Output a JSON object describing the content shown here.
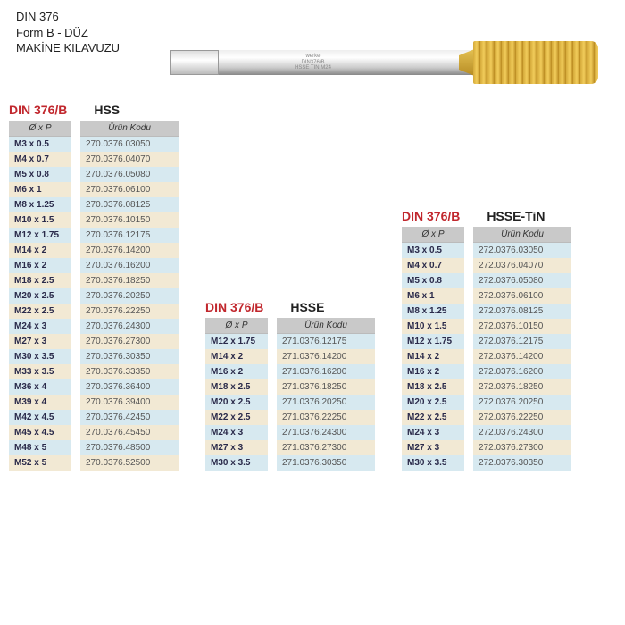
{
  "header": {
    "line1": "DIN 376",
    "line2": "Form B - DÜZ",
    "line3": "MAKİNE KILAVUZU"
  },
  "tool_marking": {
    "brand": "werke",
    "spec": "DIN376/B",
    "coat": "HSSE TIN M24"
  },
  "colors": {
    "title_red": "#c1272d",
    "row_blue": "#d7e9f0",
    "row_cream": "#f2e9d4",
    "header_grey": "#c9c9c9",
    "thread_gold": "#d4a93a"
  },
  "tables": [
    {
      "title": "DIN 376/B",
      "material": "HSS",
      "size_header": "Ø  x  P",
      "code_header": "Ürün Kodu",
      "rows": [
        {
          "size": "M3 x 0.5",
          "code": "270.0376.03050"
        },
        {
          "size": "M4 x 0.7",
          "code": "270.0376.04070"
        },
        {
          "size": "M5 x 0.8",
          "code": "270.0376.05080"
        },
        {
          "size": "M6 x 1",
          "code": "270.0376.06100"
        },
        {
          "size": "M8 x 1.25",
          "code": "270.0376.08125"
        },
        {
          "size": "M10 x 1.5",
          "code": "270.0376.10150"
        },
        {
          "size": "M12 x 1.75",
          "code": "270.0376.12175"
        },
        {
          "size": "M14 x 2",
          "code": "270.0376.14200"
        },
        {
          "size": "M16 x 2",
          "code": "270.0376.16200"
        },
        {
          "size": "M18 x 2.5",
          "code": "270.0376.18250"
        },
        {
          "size": "M20 x 2.5",
          "code": "270.0376.20250"
        },
        {
          "size": "M22 x 2.5",
          "code": "270.0376.22250"
        },
        {
          "size": "M24 x 3",
          "code": "270.0376.24300"
        },
        {
          "size": "M27 x 3",
          "code": "270.0376.27300"
        },
        {
          "size": "M30 x 3.5",
          "code": "270.0376.30350"
        },
        {
          "size": "M33 x 3.5",
          "code": "270.0376.33350"
        },
        {
          "size": "M36 x 4",
          "code": "270.0376.36400"
        },
        {
          "size": "M39 x 4",
          "code": "270.0376.39400"
        },
        {
          "size": "M42 x 4.5",
          "code": "270.0376.42450"
        },
        {
          "size": "M45 x 4.5",
          "code": "270.0376.45450"
        },
        {
          "size": "M48 x 5",
          "code": "270.0376.48500"
        },
        {
          "size": "M52 x 5",
          "code": "270.0376.52500"
        }
      ]
    },
    {
      "title": "DIN 376/B",
      "material": "HSSE",
      "size_header": "Ø  x  P",
      "code_header": "Ürün Kodu",
      "rows": [
        {
          "size": "M12 x 1.75",
          "code": "271.0376.12175"
        },
        {
          "size": "M14 x 2",
          "code": "271.0376.14200"
        },
        {
          "size": "M16 x 2",
          "code": "271.0376.16200"
        },
        {
          "size": "M18 x 2.5",
          "code": "271.0376.18250"
        },
        {
          "size": "M20 x 2.5",
          "code": "271.0376.20250"
        },
        {
          "size": "M22 x 2.5",
          "code": "271.0376.22250"
        },
        {
          "size": "M24 x 3",
          "code": "271.0376.24300"
        },
        {
          "size": "M27 x 3",
          "code": "271.0376.27300"
        },
        {
          "size": "M30 x 3.5",
          "code": "271.0376.30350"
        }
      ]
    },
    {
      "title": "DIN 376/B",
      "material": "HSSE-TiN",
      "size_header": "Ø  x  P",
      "code_header": "Ürün Kodu",
      "rows": [
        {
          "size": "M3 x 0.5",
          "code": "272.0376.03050"
        },
        {
          "size": "M4 x 0.7",
          "code": "272.0376.04070"
        },
        {
          "size": "M5 x 0.8",
          "code": "272.0376.05080"
        },
        {
          "size": "M6 x 1",
          "code": "272.0376.06100"
        },
        {
          "size": "M8 x 1.25",
          "code": "272.0376.08125"
        },
        {
          "size": "M10 x 1.5",
          "code": "272.0376.10150"
        },
        {
          "size": "M12 x 1.75",
          "code": "272.0376.12175"
        },
        {
          "size": "M14 x 2",
          "code": "272.0376.14200"
        },
        {
          "size": "M16 x 2",
          "code": "272.0376.16200"
        },
        {
          "size": "M18 x 2.5",
          "code": "272.0376.18250"
        },
        {
          "size": "M20 x 2.5",
          "code": "272.0376.20250"
        },
        {
          "size": "M22 x 2.5",
          "code": "272.0376.22250"
        },
        {
          "size": "M24 x 3",
          "code": "272.0376.24300"
        },
        {
          "size": "M27 x 3",
          "code": "272.0376.27300"
        },
        {
          "size": "M30 x 3.5",
          "code": "272.0376.30350"
        }
      ]
    }
  ]
}
